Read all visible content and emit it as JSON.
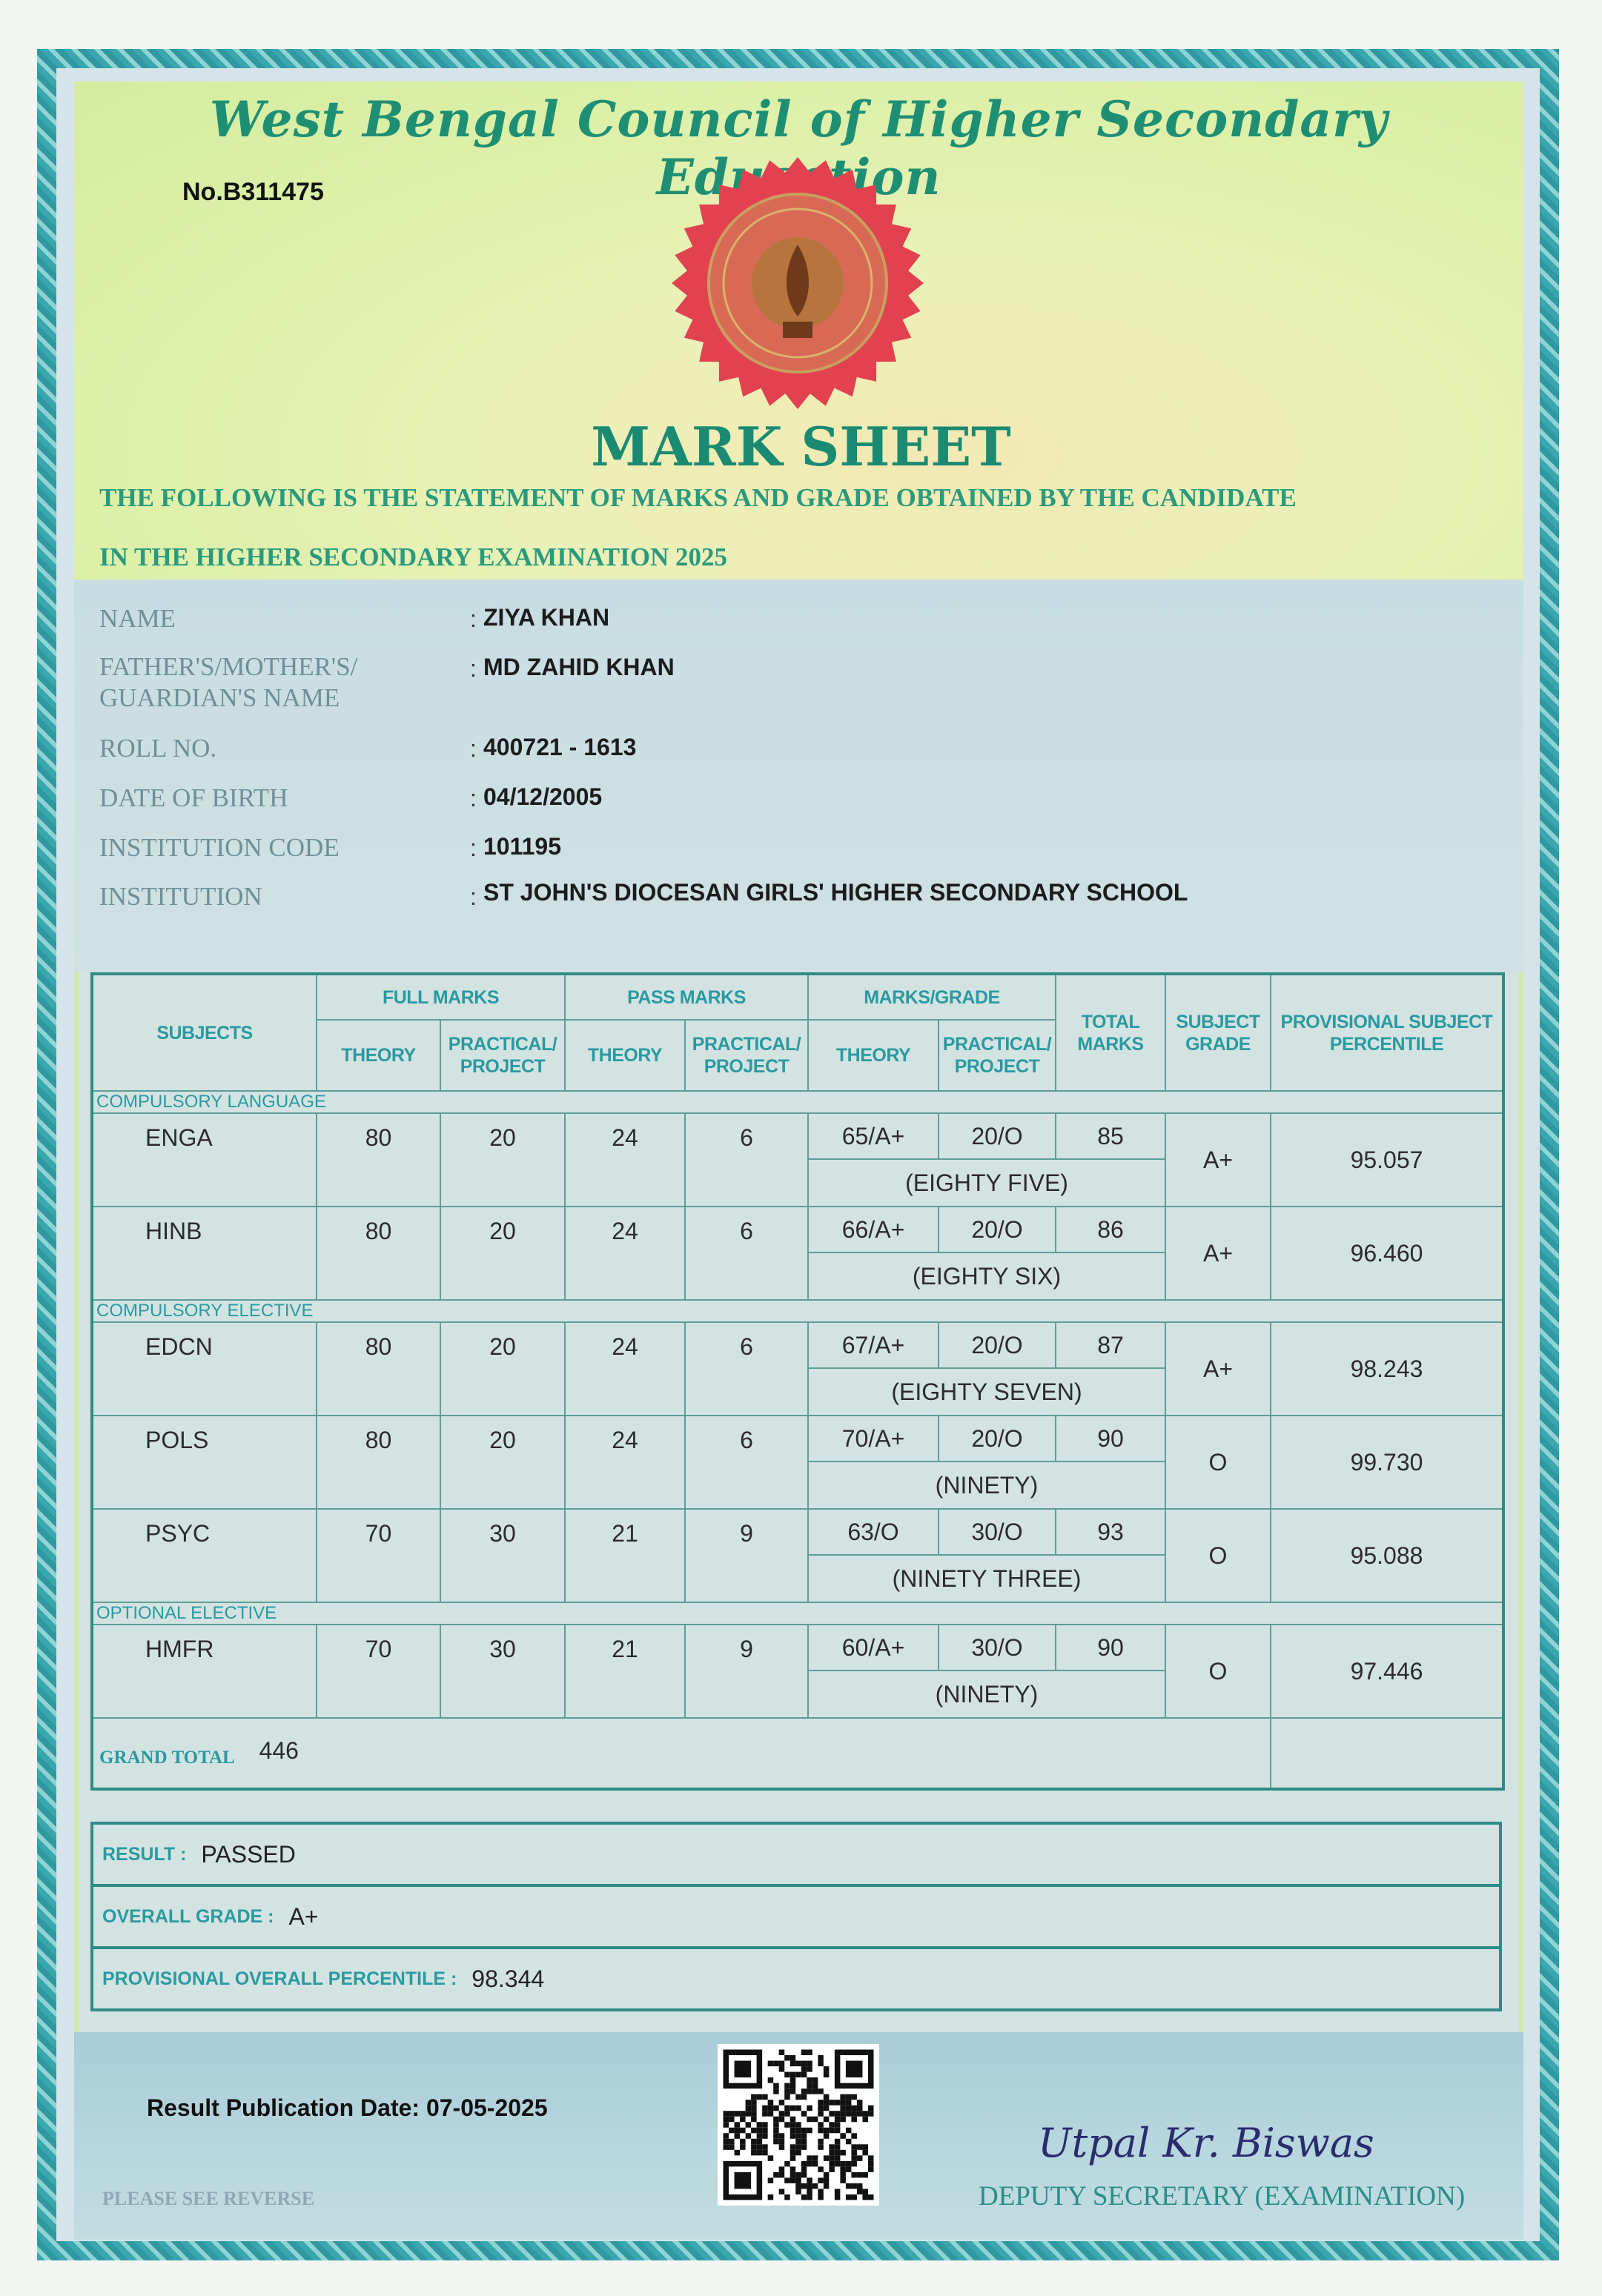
{
  "header": {
    "council_name": "West Bengal Council of Higher Secondary Education",
    "serial_number": "No.B311475",
    "document_title": "MARK SHEET",
    "statement_line1": "THE FOLLOWING IS THE STATEMENT OF MARKS AND GRADE OBTAINED BY THE CANDIDATE",
    "statement_line2": "IN THE HIGHER SECONDARY EXAMINATION 2025",
    "seal_icon": "council-seal-icon",
    "seal_color": "#e2424f"
  },
  "candidate": {
    "name_label": "NAME",
    "name": "ZIYA KHAN",
    "guardian_label_1": "FATHER'S/MOTHER'S/",
    "guardian_label_2": "GUARDIAN'S NAME",
    "guardian_name": "MD ZAHID KHAN",
    "roll_label": "ROLL NO.",
    "roll_no": "400721 - 1613",
    "dob_label": "DATE OF BIRTH",
    "dob": "04/12/2005",
    "institution_code_label": "INSTITUTION CODE",
    "institution_code": "101195",
    "institution_label": "INSTITUTION",
    "institution": "ST JOHN'S DIOCESAN GIRLS' HIGHER SECONDARY SCHOOL",
    "colon": ":"
  },
  "table": {
    "headers": {
      "subjects": "SUBJECTS",
      "full_marks": "FULL MARKS",
      "pass_marks": "PASS MARKS",
      "marks_grade": "MARKS/GRADE",
      "theory": "THEORY",
      "practical": "PRACTICAL/ PROJECT",
      "total_marks": "TOTAL MARKS",
      "subject_grade": "SUBJECT GRADE",
      "percentile": "PROVISIONAL SUBJECT PERCENTILE"
    },
    "groups": [
      {
        "category": "COMPULSORY LANGUAGE",
        "subjects": [
          {
            "name": "ENGA",
            "full_theory": "80",
            "full_practical": "20",
            "pass_theory": "24",
            "pass_practical": "6",
            "marks_theory": "65/A+",
            "marks_practical": "20/O",
            "total": "85",
            "total_words": "(EIGHTY FIVE)",
            "grade": "A+",
            "percentile": "95.057"
          },
          {
            "name": "HINB",
            "full_theory": "80",
            "full_practical": "20",
            "pass_theory": "24",
            "pass_practical": "6",
            "marks_theory": "66/A+",
            "marks_practical": "20/O",
            "total": "86",
            "total_words": "(EIGHTY SIX)",
            "grade": "A+",
            "percentile": "96.460"
          }
        ]
      },
      {
        "category": "COMPULSORY ELECTIVE",
        "subjects": [
          {
            "name": "EDCN",
            "full_theory": "80",
            "full_practical": "20",
            "pass_theory": "24",
            "pass_practical": "6",
            "marks_theory": "67/A+",
            "marks_practical": "20/O",
            "total": "87",
            "total_words": "(EIGHTY SEVEN)",
            "grade": "A+",
            "percentile": "98.243"
          },
          {
            "name": "POLS",
            "full_theory": "80",
            "full_practical": "20",
            "pass_theory": "24",
            "pass_practical": "6",
            "marks_theory": "70/A+",
            "marks_practical": "20/O",
            "total": "90",
            "total_words": "(NINETY)",
            "grade": "O",
            "percentile": "99.730"
          },
          {
            "name": "PSYC",
            "full_theory": "70",
            "full_practical": "30",
            "pass_theory": "21",
            "pass_practical": "9",
            "marks_theory": "63/O",
            "marks_practical": "30/O",
            "total": "93",
            "total_words": "(NINETY THREE)",
            "grade": "O",
            "percentile": "95.088"
          }
        ]
      },
      {
        "category": "OPTIONAL ELECTIVE",
        "subjects": [
          {
            "name": "HMFR",
            "full_theory": "70",
            "full_practical": "30",
            "pass_theory": "21",
            "pass_practical": "9",
            "marks_theory": "60/A+",
            "marks_practical": "30/O",
            "total": "90",
            "total_words": "(NINETY)",
            "grade": "O",
            "percentile": "97.446"
          }
        ]
      }
    ],
    "grand_total_label": "GRAND TOTAL",
    "grand_total": "446"
  },
  "result": {
    "result_label": "RESULT :",
    "result": "PASSED",
    "overall_grade_label": "OVERALL GRADE :",
    "overall_grade": "A+",
    "percentile_label": "PROVISIONAL OVERALL PERCENTILE :",
    "overall_percentile": "98.344"
  },
  "footer": {
    "publication_date": "Result Publication Date: 07-05-2025",
    "qr_icon": "qr-code-icon",
    "signature": "Utpal Kr. Biswas",
    "signatory_title": "DEPUTY SECRETARY (EXAMINATION)",
    "reverse_note": "PLEASE SEE REVERSE"
  },
  "colors": {
    "heading_green": "#1f8f74",
    "table_label_teal": "#2a9aa0",
    "border_teal": "#4fb4b8"
  }
}
